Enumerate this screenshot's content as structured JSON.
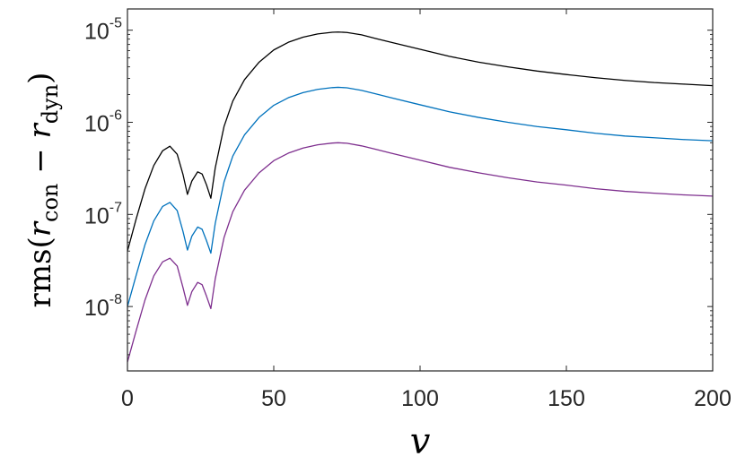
{
  "chart_data": {
    "type": "line",
    "title": "",
    "xlabel": "v",
    "ylabel": {
      "prefix": "rms(",
      "r1": "r",
      "sub1": "con",
      "minus": "−",
      "r2": "r",
      "sub2": "dyn",
      "suffix": ")"
    },
    "xlim": [
      0,
      200
    ],
    "ylim": [
      2e-09,
      1.7e-05
    ],
    "yscale": "log",
    "grid": false,
    "legend": "none",
    "x_ticks": [
      {
        "value": 0,
        "label": "0"
      },
      {
        "value": 50,
        "label": "50"
      },
      {
        "value": 100,
        "label": "100"
      },
      {
        "value": 150,
        "label": "150"
      },
      {
        "value": 200,
        "label": "200"
      }
    ],
    "y_ticks": [
      {
        "value": 1e-08,
        "base": "10",
        "exp": "-8"
      },
      {
        "value": 1e-07,
        "base": "10",
        "exp": "-7"
      },
      {
        "value": 1e-06,
        "base": "10",
        "exp": "-6"
      },
      {
        "value": 1e-05,
        "base": "10",
        "exp": "-5"
      }
    ],
    "series": [
      {
        "color": "#000000",
        "x": [
          0,
          3,
          6,
          9,
          12,
          14.5,
          17,
          19,
          20.5,
          22,
          24,
          25.5,
          27,
          28.5,
          30,
          33,
          36,
          40,
          45,
          50,
          55,
          60,
          65,
          70,
          72,
          75,
          80,
          85,
          90,
          100,
          110,
          120,
          130,
          140,
          150,
          160,
          170,
          180,
          190,
          200
        ],
        "y": [
          4e-08,
          9e-08,
          1.9e-07,
          3.4e-07,
          4.9e-07,
          5.5e-07,
          4.5e-07,
          2.7e-07,
          1.65e-07,
          2.3e-07,
          2.9e-07,
          2.75e-07,
          2.1e-07,
          1.5e-07,
          3.2e-07,
          9e-07,
          1.7e-06,
          2.9e-06,
          4.5e-06,
          6.1e-06,
          7.4e-06,
          8.4e-06,
          9.1e-06,
          9.5e-06,
          9.55e-06,
          9.45e-06,
          8.9e-06,
          8.1e-06,
          7.4e-06,
          6.2e-06,
          5.2e-06,
          4.5e-06,
          4e-06,
          3.6e-06,
          3.3e-06,
          3.05e-06,
          2.85e-06,
          2.7e-06,
          2.6e-06,
          2.5e-06
        ]
      },
      {
        "color": "#0072BD",
        "x": [
          0,
          3,
          6,
          9,
          12,
          14.5,
          17,
          19,
          20.5,
          22,
          24,
          25.5,
          27,
          28.5,
          30,
          33,
          36,
          40,
          45,
          50,
          55,
          60,
          65,
          70,
          72,
          75,
          80,
          85,
          90,
          100,
          110,
          120,
          130,
          140,
          150,
          160,
          170,
          180,
          190,
          200
        ],
        "y": [
          1e-08,
          2.2e-08,
          4.7e-08,
          8.5e-08,
          1.22e-07,
          1.35e-07,
          1.1e-07,
          6.5e-08,
          4.1e-08,
          5.8e-08,
          7.3e-08,
          6.9e-08,
          5.2e-08,
          3.8e-08,
          8e-08,
          2.25e-07,
          4.3e-07,
          7.3e-07,
          1.13e-06,
          1.53e-06,
          1.85e-06,
          2.1e-06,
          2.28e-06,
          2.38e-06,
          2.4e-06,
          2.37e-06,
          2.22e-06,
          2.03e-06,
          1.85e-06,
          1.55e-06,
          1.3e-06,
          1.13e-06,
          1e-06,
          9e-07,
          8.3e-07,
          7.6e-07,
          7.1e-07,
          6.8e-07,
          6.5e-07,
          6.3e-07
        ]
      },
      {
        "color": "#7E2F8E",
        "x": [
          0,
          3,
          6,
          9,
          12,
          14.5,
          17,
          19,
          20.5,
          22,
          24,
          25.5,
          27,
          28.5,
          30,
          33,
          36,
          40,
          45,
          50,
          55,
          60,
          65,
          70,
          72,
          75,
          80,
          85,
          90,
          100,
          110,
          120,
          130,
          140,
          150,
          160,
          170,
          180,
          190,
          200
        ],
        "y": [
          2.5e-09,
          5.5e-09,
          1.18e-08,
          2.15e-08,
          3.05e-08,
          3.35e-08,
          2.75e-08,
          1.6e-08,
          1.03e-08,
          1.45e-08,
          1.83e-08,
          1.73e-08,
          1.3e-08,
          9.5e-09,
          2e-08,
          5.6e-08,
          1.07e-07,
          1.83e-07,
          2.83e-07,
          3.83e-07,
          4.63e-07,
          5.25e-07,
          5.7e-07,
          5.95e-07,
          6e-07,
          5.93e-07,
          5.55e-07,
          5.08e-07,
          4.63e-07,
          3.88e-07,
          3.25e-07,
          2.83e-07,
          2.5e-07,
          2.25e-07,
          2.08e-07,
          1.9e-07,
          1.78e-07,
          1.7e-07,
          1.63e-07,
          1.58e-07
        ]
      }
    ]
  }
}
